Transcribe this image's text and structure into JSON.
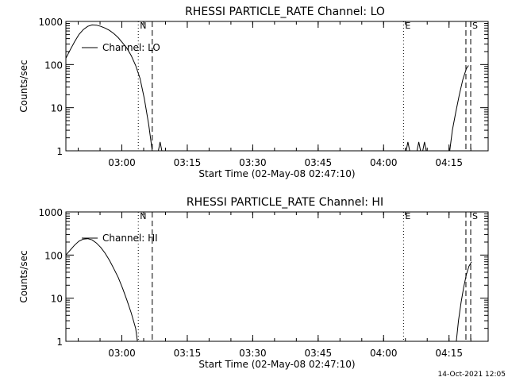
{
  "footer": {
    "timestamp": "14-Oct-2021 12:05"
  },
  "chart_data": [
    {
      "type": "line",
      "title": "RHESSI PARTICLE_RATE Channel: LO",
      "xlabel": "Start Time (02-May-08 02:47:10)",
      "ylabel": "Counts/sec",
      "yscale": "log",
      "ylim": [
        1,
        1000
      ],
      "ytick_labels": [
        "1",
        "10",
        "100",
        "1000"
      ],
      "x_unit": "minutes after start time",
      "xlim": [
        0,
        96.8
      ],
      "xtick_labels": [
        "03:00",
        "03:15",
        "03:30",
        "03:45",
        "04:00",
        "04:15"
      ],
      "xtick_values": [
        12.83,
        27.83,
        42.83,
        57.83,
        72.83,
        87.83
      ],
      "legend": {
        "label": "Channel: LO",
        "placement": "top-left"
      },
      "event_lines": [
        {
          "x": 16.6,
          "style": "dotted",
          "label": "N"
        },
        {
          "x": 19.8,
          "style": "dashed",
          "label": ""
        },
        {
          "x": 77.4,
          "style": "dotted",
          "label": "E"
        },
        {
          "x": 91.7,
          "style": "dashed",
          "label": ""
        },
        {
          "x": 92.8,
          "style": "dashed",
          "label": "S"
        }
      ],
      "series": [
        {
          "name": "Channel: LO",
          "segments": [
            [
              [
                0,
                140
              ],
              [
                1,
                220
              ],
              [
                2,
                340
              ],
              [
                3,
                500
              ],
              [
                4,
                650
              ],
              [
                5,
                770
              ],
              [
                6,
                830
              ],
              [
                7,
                820
              ],
              [
                8,
                770
              ],
              [
                9,
                700
              ],
              [
                10,
                620
              ],
              [
                11,
                520
              ],
              [
                12,
                420
              ],
              [
                13,
                320
              ],
              [
                14,
                240
              ],
              [
                15,
                160
              ],
              [
                16,
                95
              ],
              [
                17,
                48
              ],
              [
                18,
                16
              ],
              [
                19,
                4
              ],
              [
                19.8,
                1
              ]
            ],
            [
              [
                21.2,
                1
              ],
              [
                21.6,
                1.6
              ],
              [
                22.0,
                1
              ]
            ],
            [
              [
                78.0,
                1
              ],
              [
                78.4,
                1.6
              ],
              [
                78.8,
                1
              ]
            ],
            [
              [
                80.5,
                1
              ],
              [
                80.9,
                1.6
              ],
              [
                81.3,
                1
              ]
            ],
            [
              [
                81.8,
                1
              ],
              [
                82.2,
                1.6
              ],
              [
                82.6,
                1
              ]
            ],
            [
              [
                88.0,
                1
              ],
              [
                88.6,
                3
              ],
              [
                89.4,
                8
              ],
              [
                90.2,
                20
              ],
              [
                91.0,
                45
              ],
              [
                91.8,
                80
              ],
              [
                92.3,
                95
              ]
            ]
          ]
        }
      ]
    },
    {
      "type": "line",
      "title": "RHESSI PARTICLE_RATE Channel: HI",
      "xlabel": "Start Time (02-May-08 02:47:10)",
      "ylabel": "Counts/sec",
      "yscale": "log",
      "ylim": [
        1,
        1000
      ],
      "ytick_labels": [
        "1",
        "10",
        "100",
        "1000"
      ],
      "x_unit": "minutes after start time",
      "xlim": [
        0,
        96.8
      ],
      "xtick_labels": [
        "03:00",
        "03:15",
        "03:30",
        "03:45",
        "04:00",
        "04:15"
      ],
      "xtick_values": [
        12.83,
        27.83,
        42.83,
        57.83,
        72.83,
        87.83
      ],
      "legend": {
        "label": "Channel: HI",
        "placement": "top-left"
      },
      "event_lines": [
        {
          "x": 16.6,
          "style": "dotted",
          "label": "N"
        },
        {
          "x": 19.8,
          "style": "dashed",
          "label": ""
        },
        {
          "x": 77.4,
          "style": "dotted",
          "label": "E"
        },
        {
          "x": 91.7,
          "style": "dashed",
          "label": ""
        },
        {
          "x": 92.8,
          "style": "dashed",
          "label": "S"
        }
      ],
      "series": [
        {
          "name": "Channel: HI",
          "segments": [
            [
              [
                0,
                100
              ],
              [
                1,
                130
              ],
              [
                2,
                170
              ],
              [
                3,
                210
              ],
              [
                4,
                235
              ],
              [
                5,
                240
              ],
              [
                6,
                225
              ],
              [
                7,
                190
              ],
              [
                8,
                150
              ],
              [
                9,
                110
              ],
              [
                10,
                75
              ],
              [
                11,
                48
              ],
              [
                12,
                30
              ],
              [
                13,
                17
              ],
              [
                14,
                9
              ],
              [
                15,
                4.5
              ],
              [
                16,
                2
              ],
              [
                16.4,
                1
              ]
            ],
            [
              [
                89.5,
                1
              ],
              [
                90.0,
                3
              ],
              [
                90.6,
                8
              ],
              [
                91.2,
                18
              ],
              [
                91.8,
                35
              ],
              [
                92.4,
                55
              ],
              [
                93.0,
                70
              ]
            ]
          ]
        }
      ]
    }
  ]
}
